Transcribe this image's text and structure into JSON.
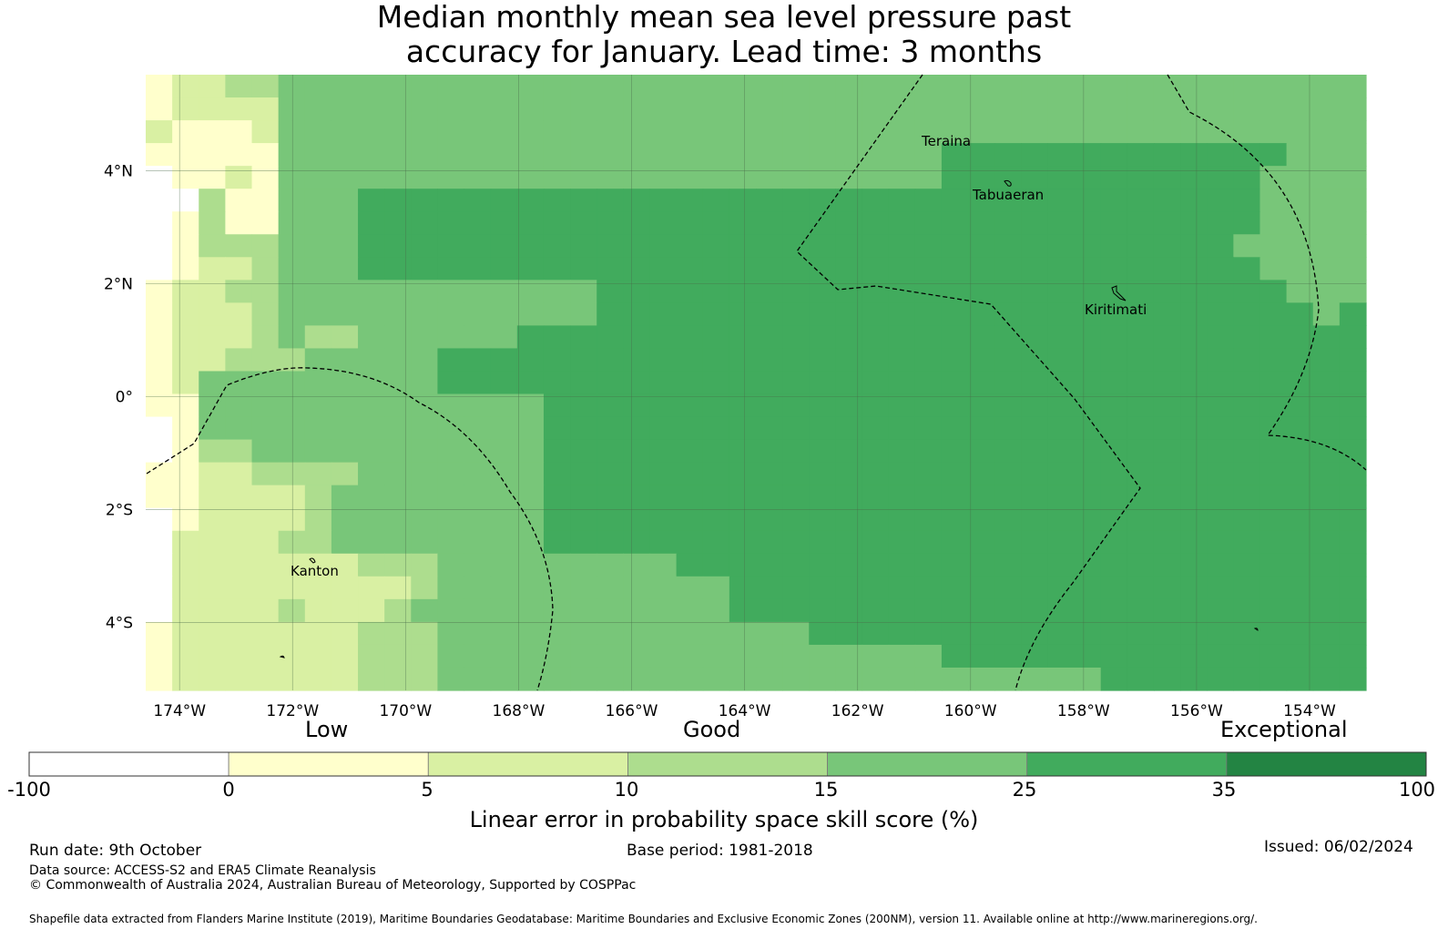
{
  "title": {
    "line1": "Median monthly mean sea level pressure past",
    "line2": "accuracy for January. Lead time: 3 months"
  },
  "map": {
    "lat_range": [
      -5.2,
      5.7
    ],
    "lon_range": [
      -174.6,
      -153
    ],
    "cell_size_deg": 0.833,
    "lon_ticks": [
      "174°W",
      "172°W",
      "170°W",
      "168°W",
      "166°W",
      "164°W",
      "162°W",
      "160°W",
      "158°W",
      "156°W",
      "154°W"
    ],
    "lat_ticks": [
      "4°N",
      "2°N",
      "0°",
      "2°S",
      "4°S"
    ],
    "places": {
      "teraina": "Teraina",
      "tabuaeran": "Tabuaeran",
      "kiritimati": "Kiritimati",
      "kanton": "Kanton"
    },
    "skill_grid_description": "median LEPS skill per grid cell, class index 0-6",
    "skill_grid": [
      "1223344444444444444444444444444444444444444444",
      "1222244444444444444444444444444444444444444444",
      "2111244444444444444444444444444444444444444444",
      "1111144444444444444444444444445555555555555444",
      "0112144444444444444444444444445555555555554444",
      "0031144455555555555555555555555555555555554444",
      "0131144455555555555555555555555555555555554444",
      "0133344455555555555555555555555555555555544444",
      "0122344455555555555555555555555555555555554444",
      "1223344444444444455555555555555555555555555444",
      "1222344444444444455555555555555555555555555545",
      "1222343344444455555555555555555555555555555555",
      "1223334444455555555555555555555555555555555555",
      "1244444444455555555555555555555555555555555555",
      "1144444444444445555555555555555555555555555555",
      "0144444444444445555555555555555555555555555555",
      "0133444444444445555555555555555555555555555555",
      "1122333344444445555555555555555555555555555555",
      "1122223444444445555555555555555555555555555555",
      "0122223444444445555555555555555555555555555555",
      "0222233444444445555555555555555555555555555555",
      "0222222233344444444455555555555555555555555555",
      "0222222222344444444444555555555555555555555555",
      "0222232223444444444444555555555555555555555555",
      "1222222233344444444444444555555555555555555555",
      "1222222233344444444444444444445555555555555555",
      "1222222233344444444444444444444444445555555555"
    ],
    "legend": {
      "categories": [
        "Low",
        "Good",
        "Exceptional"
      ],
      "tick_labels": [
        "-100",
        "0",
        "5",
        "10",
        "15",
        "25",
        "35",
        "100"
      ],
      "colors": [
        "#ffffff",
        "#ffffcc",
        "#d9f0a3",
        "#addd8e",
        "#78c679",
        "#41ab5d",
        "#238443"
      ],
      "axis_label": "Linear error in probability space skill score (%)"
    }
  },
  "footer": {
    "run_date": "Run date: 9th October",
    "base_period": "Base period: 1981-2018",
    "issued": "Issued: 06/02/2024",
    "data_source": "Data source: ACCESS-S2 and ERA5 Climate Reanalysis",
    "copyright": "© Commonwealth of Australia 2024, Australian Bureau of Meteorology, Supported by COSPPac",
    "shapefile": "Shapefile data extracted from Flanders Marine Institute (2019), Maritime Boundaries Geodatabase: Maritime Boundaries and Exclusive Economic Zones (200NM), version 11. Available online at http://www.marineregions.org/."
  }
}
